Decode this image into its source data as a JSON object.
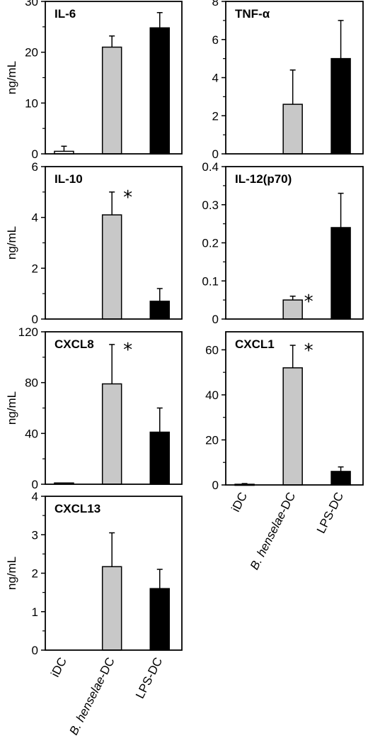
{
  "chart_data": [
    {
      "type": "bar",
      "title": "IL-6",
      "ylabel": "ng/mL",
      "categories": [
        "iDC",
        "B. henselae-DC",
        "LPS-DC"
      ],
      "values": [
        0.5,
        21,
        24.8
      ],
      "errors": [
        1,
        2.2,
        3
      ],
      "ylim": [
        0,
        30
      ],
      "yticks": [
        0,
        10,
        20,
        30
      ],
      "significant": [
        false,
        false,
        false
      ],
      "bar_colors": [
        "#ffffff",
        "#c8c8c8",
        "#000000"
      ]
    },
    {
      "type": "bar",
      "title": "TNF-α",
      "ylabel": "",
      "categories": [
        "iDC",
        "B. henselae-DC",
        "LPS-DC"
      ],
      "values": [
        0,
        2.6,
        5
      ],
      "errors": [
        0,
        1.8,
        2
      ],
      "ylim": [
        0,
        8
      ],
      "yticks": [
        0,
        2,
        4,
        6,
        8
      ],
      "significant": [
        false,
        false,
        false
      ],
      "bar_colors": [
        "#ffffff",
        "#c8c8c8",
        "#000000"
      ]
    },
    {
      "type": "bar",
      "title": "IL-10",
      "ylabel": "ng/mL",
      "categories": [
        "iDC",
        "B. henselae-DC",
        "LPS-DC"
      ],
      "values": [
        0,
        4.1,
        0.7
      ],
      "errors": [
        0,
        0.9,
        0.5
      ],
      "ylim": [
        0,
        6
      ],
      "yticks": [
        0,
        2,
        4,
        6
      ],
      "significant": [
        false,
        true,
        false
      ],
      "bar_colors": [
        "#ffffff",
        "#c8c8c8",
        "#000000"
      ]
    },
    {
      "type": "bar",
      "title": "IL-12(p70)",
      "ylabel": "",
      "categories": [
        "iDC",
        "B. henselae-DC",
        "LPS-DC"
      ],
      "values": [
        0,
        0.05,
        0.24
      ],
      "errors": [
        0,
        0.01,
        0.09
      ],
      "ylim": [
        0,
        0.4
      ],
      "yticks": [
        0,
        0.1,
        0.2,
        0.3,
        0.4
      ],
      "significant": [
        false,
        true,
        false
      ],
      "bar_colors": [
        "#ffffff",
        "#c8c8c8",
        "#000000"
      ]
    },
    {
      "type": "bar",
      "title": "CXCL8",
      "ylabel": "ng/mL",
      "categories": [
        "iDC",
        "B. henselae-DC",
        "LPS-DC"
      ],
      "values": [
        1,
        79,
        41
      ],
      "errors": [
        0,
        31,
        19
      ],
      "ylim": [
        0,
        120
      ],
      "yticks": [
        0,
        40,
        80,
        120
      ],
      "significant": [
        false,
        true,
        false
      ],
      "bar_colors": [
        "#ffffff",
        "#c8c8c8",
        "#000000"
      ]
    },
    {
      "type": "bar",
      "title": "CXCL1",
      "ylabel": "",
      "categories": [
        "iDC",
        "B. henselae-DC",
        "LPS-DC"
      ],
      "values": [
        0.3,
        52,
        6
      ],
      "errors": [
        0.3,
        10,
        2
      ],
      "ylim": [
        0,
        68
      ],
      "yticks": [
        0,
        20,
        40,
        60
      ],
      "significant": [
        false,
        true,
        false
      ],
      "bar_colors": [
        "#ffffff",
        "#c8c8c8",
        "#000000"
      ],
      "show_categories": true
    },
    {
      "type": "bar",
      "title": "CXCL13",
      "ylabel": "ng/mL",
      "categories": [
        "iDC",
        "B. henselae-DC",
        "LPS-DC"
      ],
      "values": [
        0,
        2.17,
        1.6
      ],
      "errors": [
        0,
        0.88,
        0.5
      ],
      "ylim": [
        0,
        4
      ],
      "yticks": [
        0,
        1,
        2,
        3,
        4
      ],
      "significant": [
        false,
        false,
        false
      ],
      "bar_colors": [
        "#ffffff",
        "#c8c8c8",
        "#000000"
      ],
      "show_categories": true
    }
  ]
}
